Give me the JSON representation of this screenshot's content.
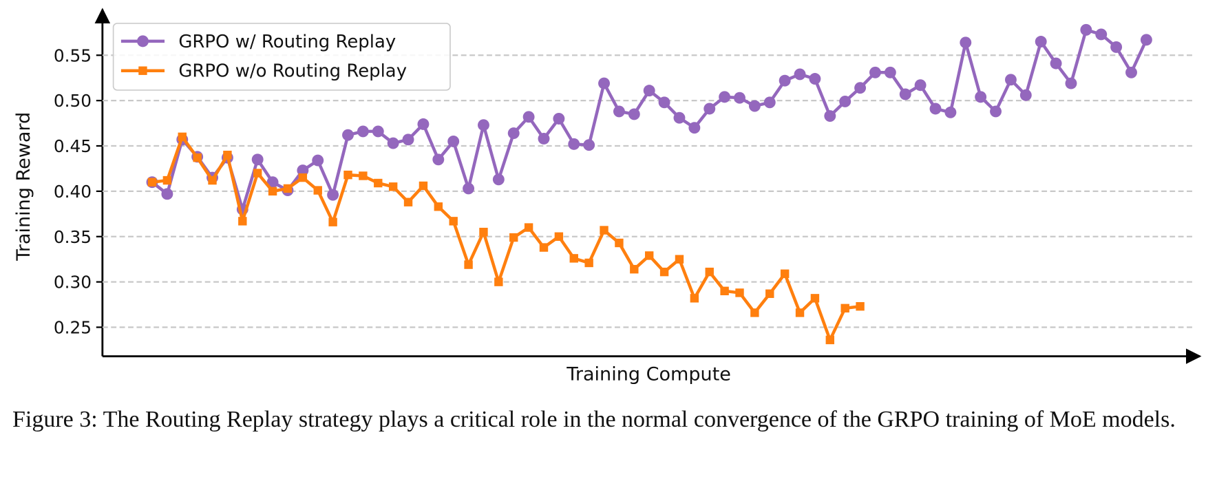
{
  "chart_data": {
    "type": "line",
    "ylabel": "Training Reward",
    "xlabel": "Training Compute",
    "caption": "Figure 3: The Routing Replay strategy plays a critical role in the normal convergence of the GRPO training of MoE models.",
    "categories": [
      null,
      null,
      null,
      null,
      null,
      null,
      null,
      null,
      null,
      null,
      null,
      null,
      null,
      null,
      null,
      null,
      null,
      null,
      null,
      null,
      null,
      null,
      null,
      null,
      null,
      null,
      null,
      null,
      null,
      null,
      null,
      null,
      null,
      null,
      null,
      null,
      null,
      null,
      null,
      null,
      null,
      null,
      null,
      null,
      null,
      null,
      null,
      null,
      null,
      null,
      null,
      null,
      null,
      null,
      null,
      null,
      null,
      null,
      null,
      null,
      null,
      null,
      null,
      null,
      null,
      null,
      null
    ],
    "ylim": [
      0.218,
      0.598
    ],
    "yticks": [
      0.25,
      {
        "value": 0.3,
        "label": "0.30"
      },
      0.35,
      {
        "value": 0.4,
        "label": "0.40"
      },
      0.45,
      {
        "value": 0.5,
        "label": "0.50"
      },
      0.55
    ],
    "grid": true,
    "legend": "upper left",
    "series": [
      {
        "name": "GRPO w/ Routing Replay",
        "color": "#9467bd",
        "marker": "circle",
        "values": [
          0.41,
          0.397,
          0.457,
          0.438,
          0.415,
          0.437,
          0.38,
          0.435,
          0.41,
          0.401,
          0.423,
          0.434,
          0.396,
          0.462,
          0.466,
          0.466,
          0.453,
          0.457,
          0.474,
          0.435,
          0.455,
          0.403,
          0.473,
          0.413,
          0.464,
          0.482,
          0.458,
          0.48,
          0.452,
          0.451,
          0.519,
          0.488,
          0.485,
          0.511,
          0.498,
          0.481,
          0.47,
          0.491,
          0.504,
          0.503,
          0.494,
          0.498,
          0.522,
          0.529,
          0.524,
          0.483,
          0.499,
          0.514,
          0.531,
          0.531,
          0.507,
          0.517,
          0.491,
          0.487,
          0.564,
          0.504,
          0.488,
          0.523,
          0.506,
          0.565,
          0.541,
          0.519,
          0.578,
          0.573,
          0.559,
          0.531,
          0.567
        ]
      },
      {
        "name": "GRPO w/o Routing Replay",
        "color": "#ff7f0e",
        "marker": "square",
        "values": [
          0.41,
          0.412,
          0.46,
          0.437,
          0.412,
          0.44,
          0.367,
          0.42,
          0.4,
          0.403,
          0.415,
          0.401,
          0.366,
          0.418,
          0.417,
          0.409,
          0.405,
          0.388,
          0.406,
          0.383,
          0.367,
          0.319,
          0.355,
          0.3,
          0.349,
          0.36,
          0.338,
          0.35,
          0.326,
          0.321,
          0.357,
          0.343,
          0.314,
          0.329,
          0.311,
          0.325,
          0.282,
          0.311,
          0.29,
          0.288,
          0.266,
          0.287,
          0.309,
          0.266,
          0.282,
          0.236,
          0.271,
          0.273,
          null,
          null,
          null,
          null,
          null,
          null,
          null,
          null,
          null,
          null,
          null,
          null,
          null,
          null,
          null,
          null,
          null,
          null,
          null
        ]
      }
    ]
  }
}
